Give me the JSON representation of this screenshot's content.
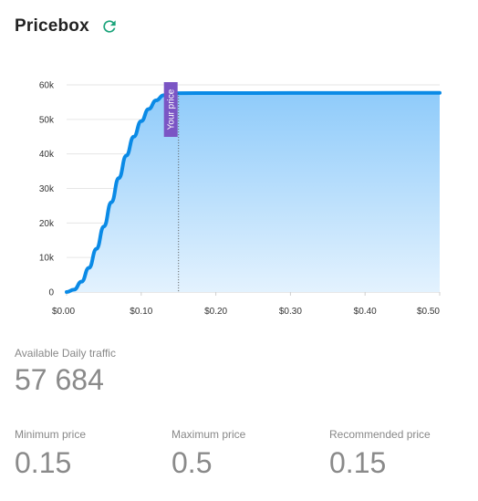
{
  "header": {
    "title": "Pricebox",
    "refresh_icon": "refresh-icon",
    "accent": "#1aa37a"
  },
  "chart_data": {
    "type": "area",
    "title": "",
    "xlabel": "",
    "ylabel": "",
    "x_tick_labels": [
      "$0.00",
      "$0.10",
      "$0.20",
      "$0.30",
      "$0.40",
      "$0.50"
    ],
    "y_tick_labels": [
      "0",
      "10k",
      "20k",
      "30k",
      "40k",
      "50k",
      "60k"
    ],
    "xlim": [
      0,
      0.5
    ],
    "ylim": [
      0,
      60000
    ],
    "grid": true,
    "line_color": "#0a8ae6",
    "fill_top_color": "#8fcbfa",
    "fill_bottom_color": "#e3f2fe",
    "series": [
      {
        "x": [
          0,
          0.01,
          0.02,
          0.03,
          0.04,
          0.05,
          0.06,
          0.07,
          0.08,
          0.09,
          0.1,
          0.11,
          0.12,
          0.13,
          0.14,
          0.15,
          0.2,
          0.3,
          0.4,
          0.5
        ],
        "values": [
          0,
          700,
          3000,
          7000,
          12500,
          19000,
          26000,
          33000,
          39500,
          45000,
          49500,
          53000,
          55500,
          57000,
          57500,
          57600,
          57620,
          57650,
          57670,
          57684
        ]
      }
    ],
    "marker": {
      "x": 0.15,
      "label": "Your price",
      "color": "#7b55c4"
    }
  },
  "traffic": {
    "label": "Available Daily traffic",
    "value": "57 684"
  },
  "metrics": [
    {
      "label": "Minimum price",
      "value": "0.15"
    },
    {
      "label": "Maximum price",
      "value": "0.5"
    },
    {
      "label": "Recommended price",
      "value": "0.15"
    }
  ]
}
